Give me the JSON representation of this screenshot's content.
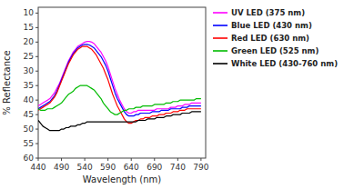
{
  "chart_data": {
    "type": "line",
    "xlabel": "Wavelength (nm)",
    "ylabel": "% Reflectance",
    "xlim": [
      440,
      800
    ],
    "ylim": [
      60,
      8
    ],
    "xticks": [
      440,
      490,
      540,
      590,
      640,
      690,
      740,
      790
    ],
    "yticks": [
      10,
      15,
      20,
      25,
      30,
      35,
      40,
      45,
      50,
      55,
      60
    ],
    "legend": "right",
    "x": [
      440,
      445,
      450,
      455,
      460,
      465,
      470,
      475,
      480,
      485,
      490,
      495,
      500,
      505,
      510,
      515,
      520,
      525,
      530,
      535,
      540,
      545,
      550,
      555,
      560,
      565,
      570,
      575,
      580,
      585,
      590,
      595,
      600,
      605,
      610,
      615,
      620,
      625,
      630,
      635,
      640,
      645,
      650,
      655,
      660,
      665,
      670,
      675,
      680,
      685,
      690,
      695,
      700,
      705,
      710,
      715,
      720,
      725,
      730,
      735,
      740,
      745,
      750,
      755,
      760,
      765,
      770,
      775,
      780,
      785,
      790
    ],
    "series": [
      {
        "name": "UV LED (375 nm)",
        "color": "#ff00ff",
        "values": [
          42.0,
          41.5,
          41.0,
          40.5,
          40.0,
          39.5,
          38.5,
          37.5,
          36.0,
          34.5,
          32.5,
          30.5,
          28.5,
          26.5,
          25.0,
          23.5,
          22.5,
          21.5,
          21.0,
          20.5,
          20.0,
          19.8,
          19.8,
          20.0,
          20.5,
          21.5,
          22.5,
          23.5,
          25.0,
          26.5,
          28.5,
          31.0,
          33.5,
          36.0,
          38.0,
          40.0,
          41.5,
          43.0,
          44.0,
          44.5,
          44.5,
          44.0,
          44.0,
          43.5,
          43.5,
          43.5,
          43.5,
          43.5,
          43.5,
          43.5,
          43.5,
          43.0,
          43.0,
          43.0,
          43.0,
          43.0,
          43.0,
          42.5,
          42.5,
          42.5,
          42.0,
          42.0,
          42.0,
          41.5,
          41.5,
          41.5,
          41.0,
          41.0,
          41.0,
          41.0,
          41.0
        ]
      },
      {
        "name": "Blue LED (430 nm)",
        "color": "#0000ff",
        "values": [
          43.0,
          42.5,
          42.0,
          41.5,
          41.0,
          40.5,
          39.5,
          38.5,
          37.0,
          35.0,
          33.0,
          31.0,
          29.0,
          27.0,
          25.5,
          24.0,
          23.0,
          22.0,
          21.5,
          21.0,
          20.8,
          20.8,
          21.0,
          21.5,
          22.0,
          23.0,
          24.0,
          25.0,
          26.5,
          28.0,
          30.0,
          32.5,
          35.0,
          37.5,
          39.5,
          41.0,
          42.5,
          44.0,
          45.0,
          45.5,
          45.5,
          45.5,
          45.0,
          45.0,
          44.5,
          44.5,
          44.5,
          44.5,
          44.5,
          44.0,
          44.0,
          44.0,
          44.0,
          43.5,
          43.5,
          43.5,
          43.5,
          43.0,
          43.0,
          43.0,
          43.0,
          43.0,
          42.5,
          42.5,
          42.5,
          42.0,
          42.0,
          42.0,
          42.0,
          42.0,
          42.0
        ]
      },
      {
        "name": "Red LED (630 nm)",
        "color": "#ff0000",
        "values": [
          43.5,
          43.0,
          42.5,
          42.0,
          41.5,
          41.0,
          40.0,
          39.0,
          37.5,
          35.5,
          33.5,
          31.5,
          29.5,
          27.5,
          26.0,
          24.5,
          23.5,
          22.5,
          22.0,
          21.5,
          21.5,
          21.5,
          22.0,
          22.5,
          23.5,
          24.5,
          26.0,
          27.5,
          29.0,
          31.0,
          33.0,
          35.5,
          38.0,
          40.0,
          42.0,
          43.5,
          45.0,
          46.5,
          47.5,
          48.0,
          48.0,
          47.5,
          47.0,
          47.0,
          46.5,
          46.5,
          46.0,
          46.0,
          46.0,
          45.5,
          45.5,
          45.5,
          45.0,
          45.0,
          45.0,
          44.5,
          44.5,
          44.5,
          44.0,
          44.0,
          44.0,
          43.5,
          43.5,
          43.5,
          43.0,
          43.0,
          43.0,
          43.0,
          43.0,
          43.0,
          43.0
        ]
      },
      {
        "name": "Green LED (525 nm)",
        "color": "#00bb00",
        "values": [
          43.0,
          43.5,
          43.5,
          43.5,
          43.0,
          43.0,
          43.0,
          42.5,
          42.0,
          41.5,
          41.0,
          40.0,
          39.0,
          38.0,
          37.5,
          37.0,
          36.0,
          35.5,
          35.0,
          35.0,
          35.0,
          35.0,
          35.5,
          36.0,
          36.5,
          37.5,
          38.5,
          39.5,
          41.0,
          42.0,
          43.0,
          44.0,
          44.5,
          45.0,
          45.0,
          44.5,
          44.0,
          43.5,
          43.5,
          43.0,
          43.0,
          43.0,
          42.5,
          42.5,
          42.5,
          42.0,
          42.0,
          42.0,
          42.0,
          42.0,
          41.5,
          41.5,
          41.5,
          41.5,
          41.5,
          41.0,
          41.0,
          41.0,
          40.5,
          40.5,
          40.5,
          40.0,
          40.0,
          40.0,
          40.0,
          40.0,
          40.0,
          40.0,
          39.5,
          39.5,
          39.5
        ]
      },
      {
        "name": "White LED (430-760 nm)",
        "color": "#000000",
        "values": [
          47.0,
          48.0,
          49.0,
          49.5,
          50.0,
          50.5,
          50.5,
          50.5,
          50.5,
          50.5,
          50.0,
          50.0,
          49.5,
          49.5,
          49.0,
          49.0,
          49.0,
          48.5,
          48.5,
          48.0,
          48.0,
          47.5,
          47.5,
          47.5,
          47.5,
          47.5,
          47.5,
          47.5,
          47.5,
          47.5,
          47.5,
          47.5,
          47.5,
          47.5,
          47.5,
          47.5,
          47.5,
          47.5,
          47.5,
          47.5,
          47.5,
          47.5,
          47.5,
          47.0,
          47.0,
          47.0,
          47.0,
          46.5,
          46.5,
          46.5,
          46.5,
          46.0,
          46.0,
          46.0,
          46.0,
          45.5,
          45.5,
          45.5,
          45.0,
          45.0,
          45.0,
          45.0,
          44.5,
          44.5,
          44.5,
          44.5,
          44.0,
          44.0,
          44.0,
          44.0,
          44.0
        ]
      }
    ]
  }
}
